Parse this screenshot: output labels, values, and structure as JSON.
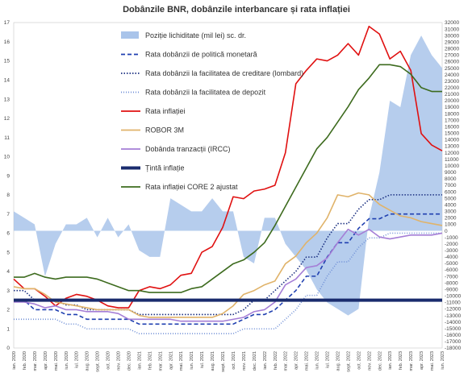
{
  "chart_data": {
    "type": "line",
    "title": "Dobânzile  BNR, dobânzile  interbancare  și rata  inflației",
    "x": [
      "ian. 2020",
      "feb. 2020",
      "mar. 2020",
      "apr. 2020",
      "mai. 2020",
      "iun. 2020",
      "iul. 2020",
      "aug. 2020",
      "sept. 2020",
      "oct. 2020",
      "nov. 2020",
      "dec. 2020",
      "ian. 2021",
      "feb. 2021",
      "mar. 2021",
      "apr. 2021",
      "mai. 2021",
      "iun. 2021",
      "iul. 2021",
      "aug. 2021",
      "sept. 2021",
      "oct. 2021",
      "nov. 2021",
      "dec. 2021",
      "ian. 2022",
      "feb. 2022",
      "mar. 2022",
      "apr. 2022",
      "mai. 2022",
      "iun. 2022",
      "iul. 2022",
      "aug. 2022",
      "sept. 2022",
      "oct. 2022",
      "nov. 2022",
      "dec. 2022",
      "ian. 2023",
      "feb. 2023",
      "mar. 2023",
      "apr. 2023",
      "mai. 2023",
      "iun. 2023"
    ],
    "left_axis": {
      "ylim": [
        0,
        17
      ],
      "ticks": [
        0,
        1,
        2,
        3,
        4,
        5,
        6,
        7,
        8,
        9,
        10,
        11,
        12,
        13,
        14,
        15,
        16,
        17
      ]
    },
    "right_axis": {
      "ylim": [
        -18000,
        32000
      ],
      "ticks": [
        -18000,
        -17000,
        -16000,
        -15000,
        -14000,
        -13000,
        -12000,
        -11000,
        -10000,
        -9000,
        -8000,
        -7000,
        -6000,
        -5000,
        -4000,
        -3000,
        -2000,
        -1000,
        0,
        1000,
        2000,
        3000,
        4000,
        5000,
        6000,
        7000,
        8000,
        9000,
        10000,
        11000,
        12000,
        13000,
        14000,
        15000,
        16000,
        17000,
        18000,
        19000,
        20000,
        21000,
        22000,
        23000,
        24000,
        25000,
        26000,
        27000,
        28000,
        29000,
        30000,
        31000,
        32000
      ]
    },
    "grid": false,
    "legend_position": "top-left",
    "series": [
      {
        "name": "Poziție lichiditate (mil lei) sc. dr.",
        "kind": "area",
        "axis": "right",
        "color": "#a9c4ea",
        "values": [
          3000,
          2000,
          1000,
          -7000,
          -2000,
          1000,
          1000,
          2000,
          -1000,
          2000,
          -1000,
          1000,
          -3000,
          -4000,
          -4000,
          5000,
          4000,
          3000,
          3000,
          5000,
          3000,
          3000,
          -4000,
          -5000,
          2000,
          2000,
          -2000,
          -4000,
          -6000,
          -9000,
          -11000,
          -12000,
          -13000,
          -12000,
          2000,
          9000,
          20000,
          19000,
          27000,
          30000,
          27000,
          25000
        ]
      },
      {
        "name": "Rata dobânzii de politică monetară",
        "kind": "line",
        "axis": "left",
        "color": "#1f3fb0",
        "dash": "5,3",
        "values": [
          2.5,
          2.5,
          2.0,
          2.0,
          2.0,
          1.75,
          1.75,
          1.5,
          1.5,
          1.5,
          1.5,
          1.5,
          1.25,
          1.25,
          1.25,
          1.25,
          1.25,
          1.25,
          1.25,
          1.25,
          1.25,
          1.25,
          1.5,
          1.75,
          1.75,
          2.0,
          2.5,
          3.0,
          3.75,
          3.75,
          4.75,
          5.5,
          5.5,
          6.25,
          6.75,
          6.75,
          7.0,
          7.0,
          7.0,
          7.0,
          7.0,
          7.0
        ]
      },
      {
        "name": "Rata dobânzii la facilitatea de creditare (lombard)",
        "kind": "line",
        "axis": "left",
        "color": "#1a2f80",
        "dash": "1.5,2",
        "values": [
          3.0,
          3.0,
          2.5,
          2.5,
          2.5,
          2.25,
          2.25,
          2.0,
          2.0,
          2.0,
          2.0,
          2.0,
          1.75,
          1.75,
          1.75,
          1.75,
          1.75,
          1.75,
          1.75,
          1.75,
          1.75,
          1.75,
          2.0,
          2.5,
          2.5,
          3.0,
          3.5,
          4.0,
          4.75,
          4.75,
          5.75,
          6.5,
          6.5,
          7.25,
          7.75,
          7.75,
          8.0,
          8.0,
          8.0,
          8.0,
          8.0,
          8.0
        ]
      },
      {
        "name": "Rata dobânzii la facilitatea de depozit",
        "kind": "line",
        "axis": "left",
        "color": "#6f8fd6",
        "dash": "1,2",
        "values": [
          1.5,
          1.5,
          1.5,
          1.5,
          1.5,
          1.25,
          1.25,
          1.0,
          1.0,
          1.0,
          1.0,
          1.0,
          0.75,
          0.75,
          0.75,
          0.75,
          0.75,
          0.75,
          0.75,
          0.75,
          0.75,
          0.75,
          1.0,
          1.0,
          1.0,
          1.0,
          1.5,
          2.0,
          2.75,
          2.75,
          3.75,
          4.5,
          4.5,
          5.25,
          5.75,
          5.75,
          6.0,
          6.0,
          6.0,
          6.0,
          6.0,
          6.0
        ]
      },
      {
        "name": "Rata inflației",
        "kind": "line",
        "axis": "left",
        "color": "#e01010",
        "values": [
          3.6,
          3.1,
          3.1,
          2.7,
          2.2,
          2.6,
          2.8,
          2.7,
          2.5,
          2.2,
          2.1,
          2.1,
          3.0,
          3.2,
          3.1,
          3.3,
          3.8,
          3.9,
          5.0,
          5.3,
          6.3,
          7.9,
          7.8,
          8.2,
          8.3,
          8.5,
          10.2,
          13.8,
          14.5,
          15.1,
          15.0,
          15.3,
          15.9,
          15.3,
          16.8,
          16.4,
          15.1,
          15.5,
          14.5,
          11.2,
          10.6,
          10.3
        ]
      },
      {
        "name": "ROBOR 3M",
        "kind": "line",
        "axis": "left",
        "color": "#e0b36a",
        "values": [
          3.2,
          3.1,
          3.1,
          2.8,
          2.4,
          2.3,
          2.2,
          2.1,
          2.0,
          2.0,
          2.0,
          2.0,
          1.7,
          1.6,
          1.6,
          1.6,
          1.6,
          1.6,
          1.6,
          1.6,
          1.8,
          2.2,
          2.8,
          3.0,
          3.3,
          3.5,
          4.4,
          4.8,
          5.5,
          6.0,
          6.8,
          8.0,
          7.9,
          8.1,
          8.0,
          7.5,
          7.2,
          6.9,
          6.8,
          6.6,
          6.5,
          6.4
        ]
      },
      {
        "name": "Dobânda tranzacții (IRCC)",
        "kind": "line",
        "axis": "left",
        "color": "#a57ed6",
        "values": [
          2.4,
          2.4,
          2.3,
          2.1,
          2.2,
          2.0,
          2.0,
          1.9,
          1.9,
          1.9,
          1.8,
          1.5,
          1.5,
          1.5,
          1.5,
          1.5,
          1.4,
          1.4,
          1.4,
          1.4,
          1.4,
          1.5,
          1.6,
          1.9,
          2.0,
          2.4,
          3.3,
          3.6,
          4.2,
          4.3,
          4.7,
          5.5,
          6.2,
          5.9,
          6.2,
          5.8,
          5.7,
          5.8,
          5.9,
          5.9,
          5.9,
          6.0
        ]
      },
      {
        "name": "Țintă inflație",
        "kind": "line",
        "axis": "left",
        "color": "#1a2c6e",
        "width": 4,
        "values": [
          2.5,
          2.5,
          2.5,
          2.5,
          2.5,
          2.5,
          2.5,
          2.5,
          2.5,
          2.5,
          2.5,
          2.5,
          2.5,
          2.5,
          2.5,
          2.5,
          2.5,
          2.5,
          2.5,
          2.5,
          2.5,
          2.5,
          2.5,
          2.5,
          2.5,
          2.5,
          2.5,
          2.5,
          2.5,
          2.5,
          2.5,
          2.5,
          2.5,
          2.5,
          2.5,
          2.5,
          2.5,
          2.5,
          2.5,
          2.5,
          2.5,
          2.5
        ]
      },
      {
        "name": "Rata inflației CORE 2 ajustat",
        "kind": "line",
        "axis": "left",
        "color": "#3d6b1e",
        "values": [
          3.7,
          3.7,
          3.9,
          3.7,
          3.6,
          3.7,
          3.7,
          3.7,
          3.6,
          3.4,
          3.2,
          3.0,
          3.0,
          2.9,
          2.9,
          2.9,
          2.9,
          3.1,
          3.2,
          3.6,
          4.0,
          4.4,
          4.6,
          5.0,
          5.5,
          6.4,
          7.4,
          8.4,
          9.4,
          10.4,
          11.0,
          11.8,
          12.6,
          13.5,
          14.1,
          14.8,
          14.8,
          14.7,
          14.3,
          13.6,
          13.4,
          13.4
        ]
      }
    ]
  }
}
